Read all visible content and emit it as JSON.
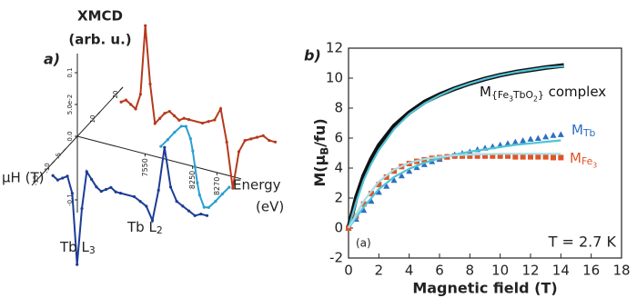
{
  "chart_data": [
    {
      "type": "xmcd3d",
      "title": "a)",
      "title_color": "#e0307a",
      "zlabel": [
        "XMCD",
        "(arb. u.)"
      ],
      "hlabel": "μH (T)",
      "elabel": [
        "Energy",
        "(eV)"
      ],
      "zticks": [
        -0.1,
        {
          "value": 0,
          "label": "0.0"
        },
        {
          "value": 0.05,
          "label": "5.0e-2"
        },
        0.1
      ],
      "hticks": [
        -15,
        -10,
        -5,
        10,
        20
      ],
      "eticks": [
        7550,
        8250,
        8270
      ],
      "series": [
        {
          "color": "#b5391d",
          "field": 15,
          "x": [
            7490,
            7495,
            7500,
            7505,
            7510,
            7515,
            7520,
            7525,
            7530,
            7535,
            7540,
            7545,
            7550,
            7555,
            7560,
            8230,
            8235,
            8240,
            8245,
            8250,
            8255,
            8260,
            8265,
            8270,
            8275,
            8280,
            8285,
            8290
          ],
          "values": [
            0,
            0.005,
            0,
            -0.005,
            0.02,
            0.13,
            0.04,
            -0.02,
            -0.01,
            0,
            0.005,
            0,
            -0.005,
            0,
            0,
            0,
            0.005,
            0.01,
            0.03,
            -0.02,
            -0.09,
            -0.03,
            -0.01,
            -0.005,
            0,
            0.005,
            0,
            0
          ]
        },
        {
          "color": "#1d3c96",
          "field": -15,
          "x": [
            7490,
            7495,
            7500,
            7505,
            7510,
            7515,
            7520,
            7525,
            7530,
            7535,
            7540,
            7545,
            7550,
            7555,
            7560,
            8230,
            8235,
            8240,
            8245,
            8250,
            8255,
            8260,
            8265,
            8270,
            8275,
            8280,
            8285,
            8290
          ],
          "values": [
            0,
            -0.005,
            0,
            0.005,
            -0.02,
            -0.13,
            -0.04,
            0.02,
            0.01,
            0,
            -0.005,
            0,
            0.005,
            0,
            0,
            0,
            -0.005,
            -0.01,
            -0.03,
            0.02,
            0.09,
            0.03,
            0.01,
            0.005,
            0,
            -0.005,
            0,
            0
          ]
        },
        {
          "color": "#2b9fcf",
          "energy": 8252,
          "x": [
            -15,
            -12,
            -9,
            -6,
            -4,
            -2,
            -1,
            0,
            1,
            2,
            4,
            6,
            9,
            12,
            15
          ],
          "values": [
            0.09,
            0.089,
            0.089,
            0.087,
            0.079,
            0.052,
            0.029,
            0,
            -0.029,
            -0.052,
            -0.079,
            -0.087,
            -0.089,
            -0.089,
            -0.09
          ]
        }
      ],
      "annotations": [
        [
          {
            "text": "Tb L"
          },
          {
            "text": "3",
            "sub": 1
          }
        ],
        [
          {
            "text": "Tb L"
          },
          {
            "text": "2",
            "sub": 1
          }
        ]
      ]
    },
    {
      "type": "line",
      "title": "b)",
      "title_color": "#e0307a",
      "xlabel": "Magnetic field (T)",
      "ylabel": [
        {
          "text": "M(μ"
        },
        {
          "text": "B",
          "sub": 1
        },
        {
          "text": "/fu)"
        }
      ],
      "xlim": [
        0,
        18
      ],
      "ylim": [
        -2,
        12
      ],
      "xticks": [
        0,
        2,
        4,
        6,
        8,
        10,
        12,
        14,
        16,
        18
      ],
      "yticks": [
        -2,
        0,
        2,
        4,
        6,
        8,
        10,
        12
      ],
      "annotations": [
        "(a)",
        "T = 2.7 K"
      ],
      "series": [
        {
          "name": [
            {
              "text": "M"
            },
            {
              "text": "{Fe",
              "sub": 1
            },
            {
              "text": "3",
              "sub": 2
            },
            {
              "text": "TbO",
              "sub": 1
            },
            {
              "text": "2",
              "sub": 2
            },
            {
              "text": "}",
              "sub": 1
            },
            {
              "text": " complex"
            }
          ],
          "color": "#111111",
          "marker": "thick",
          "x": [
            0,
            0.5,
            1,
            1.5,
            2,
            3,
            4,
            5,
            6,
            7,
            8,
            9,
            10,
            11,
            12,
            13,
            14.2
          ],
          "values": [
            0,
            2.0,
            3.5,
            4.6,
            5.5,
            6.8,
            7.7,
            8.4,
            8.9,
            9.3,
            9.65,
            9.95,
            10.2,
            10.4,
            10.55,
            10.7,
            10.85
          ]
        },
        {
          "color": "#4fc4d6",
          "marker": "line",
          "x": [
            0,
            0.5,
            1,
            1.5,
            2,
            3,
            4,
            5,
            6,
            7,
            8,
            9,
            10,
            11,
            12,
            13,
            14.2
          ],
          "values": [
            0,
            1.7,
            3.2,
            4.3,
            5.2,
            6.6,
            7.6,
            8.3,
            8.85,
            9.3,
            9.65,
            9.95,
            10.2,
            10.4,
            10.55,
            10.7,
            10.8
          ]
        },
        {
          "name": [
            {
              "text": "M"
            },
            {
              "text": "Tb",
              "sub": 1
            }
          ],
          "color": "#2f6fbf",
          "marker": "triangle",
          "x": [
            0,
            0.5,
            1,
            1.5,
            2,
            2.5,
            3,
            3.5,
            4,
            4.5,
            5,
            5.5,
            6,
            6.5,
            7,
            7.5,
            8,
            8.5,
            9,
            9.5,
            10,
            10.5,
            11,
            11.5,
            12,
            12.5,
            13,
            13.5,
            14
          ],
          "values": [
            0,
            0.6,
            1.2,
            1.8,
            2.4,
            2.8,
            3.2,
            3.5,
            3.8,
            4.05,
            4.25,
            4.45,
            4.6,
            4.75,
            4.9,
            5.0,
            5.1,
            5.25,
            5.35,
            5.45,
            5.55,
            5.65,
            5.75,
            5.85,
            5.95,
            6.0,
            6.1,
            6.2,
            6.25
          ]
        },
        {
          "color": "#4fc4d6",
          "marker": "line",
          "x": [
            0,
            1,
            2,
            3,
            4,
            5,
            6,
            7,
            8,
            9,
            10,
            11,
            12,
            13,
            14
          ],
          "values": [
            0,
            1.4,
            2.6,
            3.4,
            3.95,
            4.35,
            4.65,
            4.9,
            5.1,
            5.25,
            5.4,
            5.55,
            5.65,
            5.75,
            5.85
          ]
        },
        {
          "name": [
            {
              "text": "M"
            },
            {
              "text": "Fe",
              "sub": 1
            },
            {
              "text": "3",
              "sub": 2
            }
          ],
          "color": "#e0542a",
          "marker": "square",
          "x": [
            0,
            0.5,
            1,
            1.5,
            2,
            2.5,
            3,
            3.5,
            4,
            4.5,
            5,
            5.5,
            6,
            6.5,
            7,
            7.5,
            8,
            8.5,
            9,
            9.5,
            10,
            10.5,
            11,
            11.5,
            12,
            12.5,
            13,
            13.5,
            14
          ],
          "values": [
            0,
            0.8,
            1.6,
            2.3,
            2.9,
            3.4,
            3.8,
            4.1,
            4.3,
            4.45,
            4.55,
            4.65,
            4.7,
            4.75,
            4.8,
            4.8,
            4.8,
            4.8,
            4.8,
            4.8,
            4.8,
            4.8,
            4.75,
            4.75,
            4.75,
            4.75,
            4.75,
            4.7,
            4.7
          ]
        },
        {
          "color": "#a9dde6",
          "marker": "line",
          "x": [
            0,
            1,
            2,
            3,
            4,
            5,
            6,
            7,
            8,
            10,
            12,
            14
          ],
          "values": [
            0,
            1.8,
            3.1,
            3.9,
            4.35,
            4.6,
            4.75,
            4.85,
            4.9,
            4.95,
            4.95,
            4.95
          ]
        }
      ]
    }
  ]
}
